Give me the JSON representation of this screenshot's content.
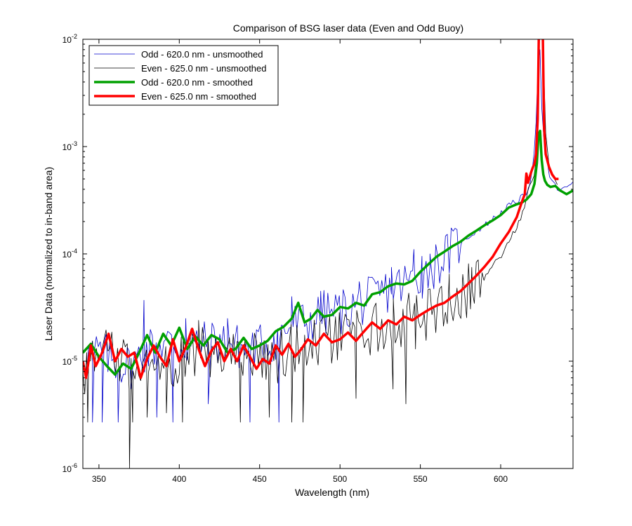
{
  "chart_data": {
    "type": "line",
    "title": "Comparison of BSG laser data (Even and Odd Buoy)",
    "xlabel": "Wavelength (nm)",
    "ylabel": "Laser Data (normalized to in-band area)",
    "xlim": [
      340,
      645
    ],
    "ylim": [
      1e-06,
      0.01
    ],
    "yscale": "log",
    "grid": false,
    "legend_position": "top-left",
    "x_ticks": [
      350,
      400,
      450,
      500,
      550,
      600
    ],
    "y_ticks": [
      {
        "value": 1e-06,
        "base": "10",
        "exp": "-6"
      },
      {
        "value": 1e-05,
        "base": "10",
        "exp": "-5"
      },
      {
        "value": 0.0001,
        "base": "10",
        "exp": "-4"
      },
      {
        "value": 0.001,
        "base": "10",
        "exp": "-3"
      },
      {
        "value": 0.01,
        "base": "10",
        "exp": "-2"
      }
    ],
    "series": [
      {
        "name": "Odd - 620.0 nm - unsmoothed",
        "color": "#0000cc",
        "width": 0.8,
        "kind": "noisy",
        "x": [
          340,
          350,
          360,
          370,
          380,
          390,
          400,
          410,
          420,
          430,
          440,
          450,
          460,
          470,
          480,
          490,
          500,
          510,
          520,
          530,
          540,
          550,
          560,
          570,
          580,
          590,
          600,
          605,
          610,
          615,
          618,
          620,
          622,
          624,
          626,
          630,
          635,
          640,
          645
        ],
        "y": [
          1.1e-05,
          1.2e-05,
          1e-05,
          9e-06,
          1.3e-05,
          1.5e-05,
          1.4e-05,
          1.4e-05,
          1.5e-05,
          1.5e-05,
          1.3e-05,
          1.4e-05,
          1.6e-05,
          2.2e-05,
          2.3e-05,
          2.8e-05,
          2.9e-05,
          3.3e-05,
          3.8e-05,
          4.6e-05,
          5.3e-05,
          6e-05,
          8.2e-05,
          0.00011,
          0.000145,
          0.000185,
          0.00024,
          0.00028,
          0.00031,
          0.00035,
          0.00045,
          0.00065,
          0.0016,
          0.012,
          0.0014,
          0.00055,
          0.0004,
          0.0004,
          0.00048
        ],
        "noise_until": 575,
        "noise_amp": 0.22,
        "spikes": [
          {
            "x": 346,
            "y": 2.7e-06
          },
          {
            "x": 352,
            "y": 2.7e-06
          },
          {
            "x": 362,
            "y": 2.7e-06
          },
          {
            "x": 378,
            "y": 3.7e-05
          },
          {
            "x": 386,
            "y": 3e-06
          },
          {
            "x": 396,
            "y": 2.7e-06
          },
          {
            "x": 404,
            "y": 2.5e-05
          },
          {
            "x": 418,
            "y": 4e-06
          },
          {
            "x": 430,
            "y": 2.5e-05
          },
          {
            "x": 444,
            "y": 2.7e-06
          },
          {
            "x": 462,
            "y": 2.7e-06
          },
          {
            "x": 470,
            "y": 4e-05
          },
          {
            "x": 488,
            "y": 4.5e-05
          },
          {
            "x": 512,
            "y": 5.5e-05
          },
          {
            "x": 532,
            "y": 7.5e-05
          },
          {
            "x": 546,
            "y": 0.00011
          },
          {
            "x": 551,
            "y": 9.5e-05
          },
          {
            "x": 556,
            "y": 0.0001
          }
        ]
      },
      {
        "name": "Even - 625.0 nm - unsmoothed",
        "color": "#000000",
        "width": 0.8,
        "kind": "noisy",
        "x": [
          340,
          350,
          360,
          370,
          380,
          390,
          400,
          410,
          420,
          430,
          440,
          450,
          460,
          470,
          480,
          490,
          500,
          510,
          520,
          530,
          540,
          550,
          560,
          570,
          580,
          590,
          600,
          605,
          610,
          615,
          618,
          620,
          622,
          624,
          626,
          628,
          630,
          632,
          634,
          636
        ],
        "y": [
          8e-06,
          1.1e-05,
          1.2e-05,
          8.5e-06,
          1.2e-05,
          1.1e-05,
          1e-05,
          1.3e-05,
          1.1e-05,
          1.2e-05,
          1.1e-05,
          1.25e-05,
          1e-05,
          1.35e-05,
          1.4e-05,
          1.5e-05,
          1.6e-05,
          1.8e-05,
          2e-05,
          2.2e-05,
          2.4e-05,
          2.5e-05,
          3e-05,
          3.6e-05,
          4.6e-05,
          6.5e-05,
          9.5e-05,
          0.00013,
          0.00018,
          0.00026,
          0.00048,
          0.00045,
          0.0008,
          0.012,
          0.013,
          0.0014,
          0.00065,
          0.0005,
          0.00046,
          0.00042
        ],
        "noise_until": 590,
        "noise_amp": 0.25,
        "spikes": [
          {
            "x": 343,
            "y": 2.7e-06
          },
          {
            "x": 369,
            "y": 1e-06
          },
          {
            "x": 371,
            "y": 2.7e-06
          },
          {
            "x": 380,
            "y": 3e-06
          },
          {
            "x": 392,
            "y": 3.3e-06
          },
          {
            "x": 402,
            "y": 2.7e-06
          },
          {
            "x": 412,
            "y": 2.4e-05
          },
          {
            "x": 438,
            "y": 2.7e-06
          },
          {
            "x": 456,
            "y": 3e-06
          },
          {
            "x": 470,
            "y": 2.7e-06
          },
          {
            "x": 477,
            "y": 2.7e-06
          },
          {
            "x": 510,
            "y": 4.5e-06
          },
          {
            "x": 533,
            "y": 5.5e-06
          },
          {
            "x": 541,
            "y": 4e-06
          },
          {
            "x": 547,
            "y": 1.3e-05
          },
          {
            "x": 568,
            "y": 6.5e-05
          },
          {
            "x": 582,
            "y": 7.5e-05
          }
        ]
      },
      {
        "name": "Odd - 620.0 nm - smoothed",
        "color": "#00a000",
        "width": 3.5,
        "kind": "smooth",
        "x": [
          340,
          345,
          350,
          355,
          360,
          365,
          370,
          375,
          380,
          385,
          390,
          395,
          400,
          405,
          410,
          415,
          420,
          425,
          430,
          435,
          440,
          445,
          450,
          455,
          460,
          465,
          470,
          474,
          478,
          482,
          486,
          490,
          495,
          500,
          505,
          510,
          515,
          520,
          525,
          530,
          535,
          540,
          545,
          550,
          555,
          560,
          565,
          570,
          575,
          580,
          585,
          590,
          595,
          600,
          605,
          610,
          613,
          616,
          619,
          621,
          622.5,
          623.5,
          624.5,
          625.5,
          626.5,
          627.5,
          629,
          631,
          634,
          637,
          641,
          645
        ],
        "y": [
          1.2e-05,
          1.45e-05,
          1.1e-05,
          9e-06,
          7.5e-06,
          9.5e-06,
          8.5e-06,
          1.2e-05,
          1.75e-05,
          1.2e-05,
          1.8e-05,
          1.4e-05,
          2.05e-05,
          1.3e-05,
          1.7e-05,
          1.4e-05,
          1.75e-05,
          1.6e-05,
          1.2e-05,
          1.3e-05,
          1.65e-05,
          1.3e-05,
          1.4e-05,
          1.55e-05,
          1.9e-05,
          2.1e-05,
          2.5e-05,
          3.5e-05,
          2.3e-05,
          2.5e-05,
          3e-05,
          2.6e-05,
          2.7e-05,
          3.2e-05,
          3.1e-05,
          3.5e-05,
          3.3e-05,
          4.2e-05,
          4.4e-05,
          5e-05,
          5.3e-05,
          5.2e-05,
          5.6e-05,
          6.8e-05,
          8e-05,
          9.4e-05,
          0.000105,
          0.000118,
          0.00013,
          0.000148,
          0.000165,
          0.000185,
          0.000205,
          0.00023,
          0.00027,
          0.00029,
          0.0003,
          0.00032,
          0.00036,
          0.00045,
          0.0007,
          0.0013,
          0.0014,
          0.00075,
          0.00055,
          0.00048,
          0.00044,
          0.00042,
          0.00043,
          0.00039,
          0.00036,
          0.00039
        ]
      },
      {
        "name": "Even - 625.0 nm - smoothed",
        "color": "#ff0000",
        "width": 3.5,
        "kind": "smooth",
        "x": [
          340,
          342,
          345,
          348,
          352,
          356,
          360,
          364,
          368,
          372,
          376,
          380,
          384,
          388,
          392,
          396,
          400,
          404,
          408,
          412,
          416,
          420,
          424,
          428,
          432,
          436,
          440,
          444,
          448,
          452,
          456,
          460,
          464,
          468,
          472,
          476,
          480,
          485,
          490,
          495,
          500,
          505,
          510,
          515,
          520,
          525,
          530,
          535,
          540,
          545,
          550,
          555,
          560,
          565,
          570,
          575,
          580,
          585,
          590,
          595,
          600,
          605,
          610,
          613,
          615,
          616,
          617,
          618,
          619,
          620,
          621,
          622,
          623,
          623.7,
          624.3,
          625.2,
          626.2,
          627,
          628,
          630,
          632,
          634,
          636
        ],
        "y": [
          1e-05,
          7e-06,
          1.4e-05,
          9e-06,
          1.2e-05,
          1.8e-05,
          1e-05,
          1.3e-05,
          1.1e-05,
          1.2e-05,
          7e-06,
          1.05e-05,
          1.4e-05,
          1.1e-05,
          9e-06,
          1.6e-05,
          1e-05,
          1.35e-05,
          2e-05,
          1.3e-05,
          9e-06,
          1.25e-05,
          1.5e-05,
          1e-05,
          1.3e-05,
          1e-05,
          1.4e-05,
          1.1e-05,
          8.5e-06,
          1.05e-05,
          9.5e-06,
          1.4e-05,
          1.15e-05,
          1.45e-05,
          1.1e-05,
          1.3e-05,
          1.6e-05,
          1.4e-05,
          1.8e-05,
          1.5e-05,
          1.6e-05,
          1.85e-05,
          1.55e-05,
          1.9e-05,
          2.3e-05,
          2e-05,
          2.4e-05,
          2.2e-05,
          2.6e-05,
          2.4e-05,
          2.7e-05,
          3e-05,
          3.3e-05,
          3.5e-05,
          4e-05,
          4.5e-05,
          5.3e-05,
          6.3e-05,
          7.6e-05,
          9.4e-05,
          0.000125,
          0.00016,
          0.00022,
          0.0003,
          0.00036,
          0.00056,
          0.00046,
          0.00052,
          0.00058,
          0.00064,
          0.00069,
          0.00085,
          0.0018,
          0.011,
          0.011,
          0.011,
          0.011,
          0.0015,
          0.00085,
          0.00065,
          0.00055,
          0.0005,
          0.0005
        ]
      }
    ]
  }
}
